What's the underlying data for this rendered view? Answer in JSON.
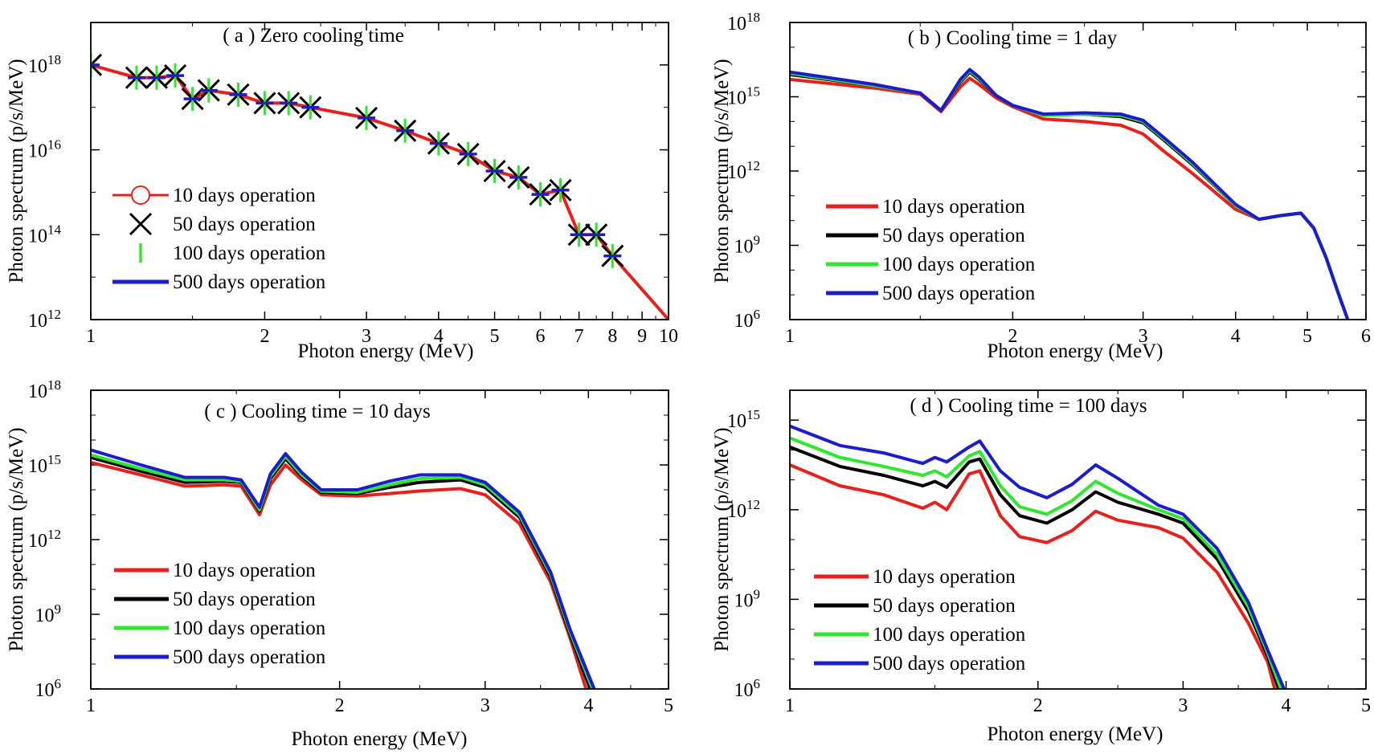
{
  "figure": {
    "series_names": [
      "10 days operation",
      "50 days operation",
      "100 days operation",
      "500 days operation"
    ],
    "colors": {
      "10 days operation": "#e8201c",
      "50 days operation": "#000000",
      "100 days operation": "#2ee82e",
      "500 days operation": "#1c1ccf"
    }
  },
  "chart_data": [
    {
      "id": "a",
      "type": "line",
      "title": "( a ) Zero cooling time",
      "xlabel": "Photon energy (MeV)",
      "ylabel": "Photon spectrum (p/s/MeV)",
      "xscale": "log",
      "yscale": "log",
      "xlim": [
        1,
        10
      ],
      "ylim": [
        1000000000000.0,
        1e+19
      ],
      "xticks": [
        1,
        2,
        3,
        4,
        5,
        6,
        7,
        8,
        9,
        10
      ],
      "yticks": [
        12,
        14,
        16,
        18
      ],
      "ytick_labels": [
        "10^12",
        "10^14",
        "10^16",
        "10^18"
      ],
      "legend": "center-left",
      "legend_markers": [
        "circle",
        "x",
        "vbar",
        "line"
      ],
      "markers_at": [
        1.0,
        1.2,
        1.3,
        1.4,
        1.5,
        1.6,
        1.8,
        2.0,
        2.2,
        2.4,
        3.0,
        3.5,
        4.0,
        4.5,
        5.0,
        5.5,
        6.0,
        6.5,
        7.0,
        7.5,
        8.0
      ],
      "series": [
        {
          "name": "10 days operation",
          "x": [
            1.0,
            1.2,
            1.3,
            1.4,
            1.5,
            1.6,
            1.8,
            2.0,
            2.2,
            2.4,
            3.0,
            3.5,
            4.0,
            4.5,
            5.0,
            5.5,
            6.0,
            6.5,
            7.0,
            7.5,
            8.0,
            10.0
          ],
          "values": [
            18.0,
            17.7,
            17.7,
            17.75,
            17.2,
            17.4,
            17.3,
            17.1,
            17.1,
            17.0,
            16.75,
            16.45,
            16.15,
            15.9,
            15.5,
            15.35,
            14.95,
            15.05,
            14.0,
            14.0,
            13.5,
            12.0
          ]
        }
      ]
    },
    {
      "id": "b",
      "type": "line",
      "title": "( b ) Cooling time = 1 day",
      "xlabel": "Photon energy (MeV)",
      "ylabel": "Photon spectrum (p/s/MeV)",
      "xscale": "log",
      "yscale": "log",
      "xlim": [
        1,
        6
      ],
      "ylim": [
        1000000.0,
        1e+18
      ],
      "xticks": [
        1,
        2,
        3,
        4,
        5,
        6
      ],
      "yticks": [
        6,
        9,
        12,
        15,
        18
      ],
      "ytick_labels": [
        "10^6",
        "10^9",
        "10^12",
        "10^15",
        "10^18"
      ],
      "legend": "center-left",
      "series": [
        {
          "name": "10 days operation",
          "x": [
            1.0,
            1.3,
            1.5,
            1.6,
            1.7,
            1.75,
            1.8,
            1.9,
            2.0,
            2.2,
            2.5,
            2.8,
            3.0,
            3.2,
            3.5,
            4.0,
            4.3,
            4.6,
            4.9,
            5.1,
            5.3,
            5.5,
            5.7
          ],
          "values": [
            15.7,
            15.35,
            15.1,
            14.4,
            15.4,
            15.75,
            15.5,
            14.95,
            14.6,
            14.1,
            14.0,
            13.85,
            13.5,
            12.8,
            11.9,
            10.45,
            10.05,
            10.2,
            10.3,
            9.7,
            8.5,
            7.1,
            5.8
          ]
        },
        {
          "name": "50 days operation",
          "x": [
            1.0,
            1.3,
            1.5,
            1.6,
            1.7,
            1.75,
            1.8,
            1.9,
            2.0,
            2.2,
            2.5,
            2.8,
            3.0,
            3.2,
            3.5,
            4.0,
            4.3,
            4.6,
            4.9,
            5.1,
            5.3,
            5.5,
            5.7
          ],
          "values": [
            15.9,
            15.45,
            15.15,
            14.45,
            15.6,
            16.0,
            15.7,
            15.05,
            14.65,
            14.25,
            14.3,
            14.2,
            13.95,
            13.25,
            12.25,
            10.6,
            10.05,
            10.2,
            10.3,
            9.7,
            8.5,
            7.1,
            5.8
          ]
        },
        {
          "name": "100 days operation",
          "x": [
            1.0,
            1.3,
            1.5,
            1.6,
            1.7,
            1.75,
            1.8,
            1.9,
            2.0,
            2.2,
            2.5,
            2.8,
            3.0,
            3.2,
            3.5,
            4.0,
            4.3,
            4.6,
            4.9,
            5.1,
            5.3,
            5.5,
            5.7
          ],
          "values": [
            15.95,
            15.45,
            15.15,
            14.45,
            15.65,
            16.05,
            15.75,
            15.05,
            14.65,
            14.25,
            14.3,
            14.25,
            14.0,
            13.3,
            12.3,
            10.6,
            10.05,
            10.2,
            10.3,
            9.7,
            8.5,
            7.1,
            5.8
          ]
        },
        {
          "name": "500 days operation",
          "x": [
            1.0,
            1.3,
            1.5,
            1.6,
            1.7,
            1.75,
            1.8,
            1.9,
            2.0,
            2.2,
            2.5,
            2.8,
            3.0,
            3.2,
            3.5,
            4.0,
            4.3,
            4.6,
            4.9,
            5.1,
            5.3,
            5.5,
            5.7
          ],
          "values": [
            16.0,
            15.5,
            15.15,
            14.45,
            15.7,
            16.1,
            15.8,
            15.05,
            14.65,
            14.3,
            14.35,
            14.3,
            14.05,
            13.35,
            12.35,
            10.65,
            10.05,
            10.2,
            10.3,
            9.7,
            8.5,
            7.1,
            5.8
          ]
        }
      ]
    },
    {
      "id": "c",
      "type": "line",
      "title": "( c ) Cooling time = 10 days",
      "xlabel": "Photon energy (MeV)",
      "ylabel": "Photon spectrum (p/s/MeV)",
      "xscale": "log",
      "yscale": "log",
      "xlim": [
        1,
        5
      ],
      "ylim": [
        1000000.0,
        1e+18
      ],
      "xticks": [
        1,
        2,
        3,
        4,
        5
      ],
      "yticks": [
        6,
        9,
        12,
        15,
        18
      ],
      "ytick_labels": [
        "10^6",
        "10^9",
        "10^12",
        "10^15",
        "10^18"
      ],
      "legend": "bottom-left",
      "series": [
        {
          "name": "10 days operation",
          "x": [
            1.0,
            1.15,
            1.3,
            1.45,
            1.52,
            1.6,
            1.65,
            1.72,
            1.8,
            1.9,
            2.1,
            2.3,
            2.5,
            2.8,
            3.0,
            3.3,
            3.6,
            3.8,
            4.0
          ],
          "values": [
            15.1,
            14.6,
            14.15,
            14.2,
            14.15,
            13.0,
            14.2,
            15.0,
            14.4,
            13.8,
            13.75,
            13.85,
            13.95,
            14.05,
            13.8,
            12.65,
            10.3,
            8.05,
            5.7
          ]
        },
        {
          "name": "50 days operation",
          "x": [
            1.0,
            1.15,
            1.3,
            1.45,
            1.52,
            1.6,
            1.65,
            1.72,
            1.8,
            1.9,
            2.1,
            2.3,
            2.5,
            2.8,
            3.0,
            3.3,
            3.6,
            3.8,
            4.05
          ],
          "values": [
            15.3,
            14.75,
            14.3,
            14.35,
            14.3,
            13.15,
            14.45,
            15.25,
            14.55,
            13.9,
            13.85,
            14.1,
            14.3,
            14.4,
            14.1,
            12.9,
            10.5,
            8.2,
            5.7
          ]
        },
        {
          "name": "100 days operation",
          "x": [
            1.0,
            1.15,
            1.3,
            1.45,
            1.52,
            1.6,
            1.65,
            1.72,
            1.8,
            1.9,
            2.1,
            2.3,
            2.5,
            2.8,
            3.0,
            3.3,
            3.6,
            3.8,
            4.08
          ],
          "values": [
            15.4,
            14.85,
            14.4,
            14.4,
            14.35,
            13.2,
            14.55,
            15.35,
            14.6,
            13.95,
            13.9,
            14.2,
            14.45,
            14.5,
            14.2,
            13.0,
            10.6,
            8.3,
            5.7
          ]
        },
        {
          "name": "500 days operation",
          "x": [
            1.0,
            1.15,
            1.3,
            1.45,
            1.52,
            1.6,
            1.65,
            1.72,
            1.8,
            1.9,
            2.1,
            2.3,
            2.5,
            2.8,
            3.0,
            3.3,
            3.6,
            3.8,
            4.1
          ],
          "values": [
            15.6,
            15.0,
            14.5,
            14.5,
            14.4,
            13.3,
            14.65,
            15.45,
            14.7,
            14.0,
            14.0,
            14.35,
            14.6,
            14.6,
            14.3,
            13.1,
            10.7,
            8.4,
            5.7
          ]
        }
      ]
    },
    {
      "id": "d",
      "type": "line",
      "title": "( d ) Cooling time = 100 days",
      "xlabel": "Photon energy (MeV)",
      "ylabel": "Photon spectrum (p/s/MeV)",
      "xscale": "log",
      "yscale": "log",
      "xlim": [
        1,
        5
      ],
      "ylim": [
        1000000.0,
        1e+16
      ],
      "xticks": [
        1,
        2,
        3,
        4,
        5
      ],
      "yticks": [
        6,
        9,
        12,
        15
      ],
      "ytick_labels": [
        "10^6",
        "10^9",
        "10^12",
        "10^15"
      ],
      "legend": "bottom-left",
      "series": [
        {
          "name": "10 days operation",
          "x": [
            1.0,
            1.15,
            1.3,
            1.45,
            1.5,
            1.55,
            1.65,
            1.7,
            1.8,
            1.9,
            2.05,
            2.2,
            2.35,
            2.5,
            2.8,
            3.0,
            3.3,
            3.6,
            3.8,
            3.9
          ],
          "values": [
            13.5,
            12.8,
            12.5,
            12.05,
            12.25,
            12.0,
            13.2,
            13.3,
            11.8,
            11.1,
            10.9,
            11.3,
            11.95,
            11.65,
            11.4,
            11.05,
            9.9,
            8.2,
            6.9,
            5.7
          ]
        },
        {
          "name": "50 days operation",
          "x": [
            1.0,
            1.15,
            1.3,
            1.45,
            1.5,
            1.55,
            1.65,
            1.7,
            1.8,
            1.9,
            2.05,
            2.2,
            2.35,
            2.5,
            2.8,
            3.0,
            3.3,
            3.6,
            3.8,
            3.95
          ],
          "values": [
            14.1,
            13.45,
            13.15,
            12.8,
            12.95,
            12.75,
            13.6,
            13.7,
            12.5,
            11.8,
            11.55,
            12.0,
            12.6,
            12.25,
            11.85,
            11.55,
            10.35,
            8.6,
            7.1,
            5.7
          ]
        },
        {
          "name": "100 days operation",
          "x": [
            1.0,
            1.15,
            1.3,
            1.45,
            1.5,
            1.55,
            1.65,
            1.7,
            1.8,
            1.9,
            2.05,
            2.2,
            2.35,
            2.5,
            2.8,
            3.0,
            3.3,
            3.6,
            3.8,
            3.98
          ],
          "values": [
            14.4,
            13.75,
            13.45,
            13.15,
            13.3,
            13.1,
            13.8,
            13.95,
            12.8,
            12.1,
            11.85,
            12.3,
            12.95,
            12.55,
            12.0,
            11.7,
            10.5,
            8.75,
            7.2,
            5.7
          ]
        },
        {
          "name": "500 days operation",
          "x": [
            1.0,
            1.15,
            1.3,
            1.45,
            1.5,
            1.55,
            1.65,
            1.7,
            1.8,
            1.9,
            2.05,
            2.2,
            2.35,
            2.5,
            2.8,
            3.0,
            3.3,
            3.6,
            3.8,
            4.02
          ],
          "values": [
            14.8,
            14.15,
            13.9,
            13.55,
            13.75,
            13.6,
            14.1,
            14.3,
            13.3,
            12.75,
            12.4,
            12.85,
            13.5,
            13.05,
            12.15,
            11.85,
            10.7,
            8.9,
            7.3,
            5.7
          ]
        }
      ]
    }
  ]
}
